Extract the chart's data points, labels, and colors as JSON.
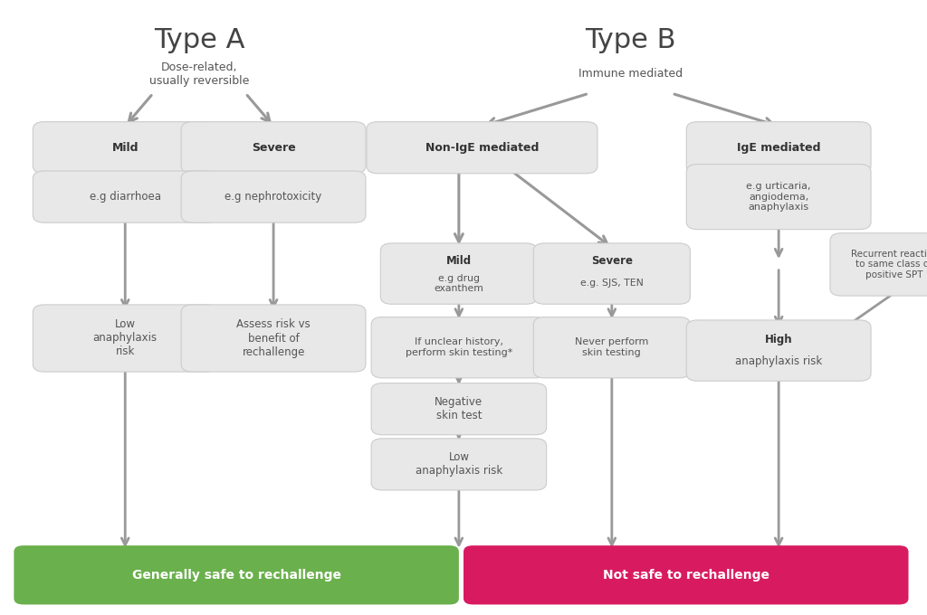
{
  "bg_color": "#ffffff",
  "box_color": "#e8e8e8",
  "box_edge_color": "#cccccc",
  "arrow_color": "#999999",
  "green_color": "#6ab04c",
  "red_color": "#d81b60",
  "title_color": "#444444",
  "text_color": "#555555",
  "bold_text_color": "#333333",
  "typeA_title": "Type A",
  "typeA_sub": "Dose-related,\nusually reversible",
  "typeB_title": "Type B",
  "typeB_sub": "Immune mediated",
  "green_label": "Generally safe to rechallenge",
  "red_label": "Not safe to rechallenge",
  "figw": 10.24,
  "figh": 6.8
}
